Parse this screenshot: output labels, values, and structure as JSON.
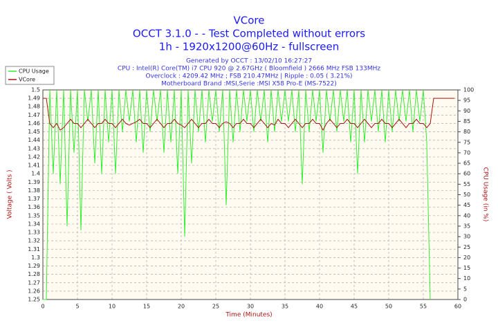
{
  "chart_data": {
    "type": "line",
    "title": "VCore",
    "subtitle": [
      "OCCT 3.1.0 -  - Test Completed without errors",
      "1h - 1920x1200@60Hz - fullscreen"
    ],
    "info": [
      "Generated by OCCT : 13/02/10 16:27:27",
      "CPU : Intel(R) Core(TM) i7 CPU 920 @ 2.67GHz ( Bloomfield ) 2666 MHz FSB 133MHz",
      "Overclock : 4209.42 MHz ; FSB 210.47MHz | Ripple : 0.05 ( 3.21%)",
      "Motherboard Brand :MSI,Serie :MSI X58 Pro-E (MS-7522)"
    ],
    "x_label": "Time (Minutes)",
    "y_label": "Voltage ( Volts )",
    "y2_label": "CPU Usage (in %)",
    "xlim": [
      0,
      60
    ],
    "xticks": [
      0,
      5,
      10,
      15,
      20,
      25,
      30,
      35,
      40,
      45,
      50,
      55,
      60
    ],
    "ylim": [
      1.25,
      1.5
    ],
    "yticks": [
      1.25,
      1.26,
      1.27,
      1.28,
      1.29,
      1.3,
      1.31,
      1.32,
      1.33,
      1.34,
      1.35,
      1.36,
      1.37,
      1.38,
      1.39,
      1.4,
      1.41,
      1.42,
      1.43,
      1.44,
      1.45,
      1.46,
      1.47,
      1.48,
      1.49,
      1.5
    ],
    "y2lim": [
      0,
      100
    ],
    "y2ticks": [
      0,
      5,
      10,
      15,
      20,
      25,
      30,
      35,
      40,
      45,
      50,
      55,
      60,
      65,
      70,
      75,
      80,
      85,
      90,
      95,
      100
    ],
    "grid": true,
    "legend": "top-left",
    "x": [
      0,
      0.5,
      1,
      1.5,
      2,
      2.5,
      3,
      3.5,
      4,
      4.5,
      5,
      5.5,
      6,
      6.5,
      7,
      7.5,
      8,
      8.5,
      9,
      9.5,
      10,
      10.5,
      11,
      11.5,
      12,
      12.5,
      13,
      13.5,
      14,
      14.5,
      15,
      15.5,
      16,
      16.5,
      17,
      17.5,
      18,
      18.5,
      19,
      19.5,
      20,
      20.5,
      21,
      21.5,
      22,
      22.5,
      23,
      23.5,
      24,
      24.5,
      25,
      25.5,
      26,
      26.5,
      27,
      27.5,
      28,
      28.5,
      29,
      29.5,
      30,
      30.5,
      31,
      31.5,
      32,
      32.5,
      33,
      33.5,
      34,
      34.5,
      35,
      35.5,
      36,
      36.5,
      37,
      37.5,
      38,
      38.5,
      39,
      39.5,
      40,
      40.5,
      41,
      41.5,
      42,
      42.5,
      43,
      43.5,
      44,
      44.5,
      45,
      45.5,
      46,
      46.5,
      47,
      47.5,
      48,
      48.5,
      49,
      49.5,
      50,
      50.5,
      51,
      51.5,
      52,
      52.5,
      53,
      53.5,
      54,
      54.5,
      55,
      55.5,
      56,
      56.5,
      57,
      57.5,
      58,
      58.5,
      59,
      59.5
    ],
    "series": [
      {
        "name": "CPU Usage",
        "color": "#33ee33",
        "axis": "y2",
        "values": [
          0,
          0,
          100,
          60,
          100,
          55,
          100,
          35,
          100,
          70,
          100,
          33,
          100,
          85,
          100,
          65,
          100,
          60,
          100,
          75,
          100,
          60,
          100,
          80,
          100,
          85,
          100,
          75,
          100,
          70,
          100,
          80,
          100,
          85,
          100,
          70,
          100,
          75,
          100,
          60,
          100,
          30,
          100,
          65,
          100,
          80,
          100,
          75,
          100,
          85,
          100,
          80,
          100,
          45,
          100,
          75,
          100,
          80,
          100,
          85,
          100,
          80,
          100,
          85,
          100,
          75,
          100,
          80,
          100,
          85,
          100,
          85,
          100,
          80,
          100,
          55,
          100,
          80,
          100,
          85,
          100,
          70,
          100,
          85,
          100,
          80,
          100,
          85,
          100,
          75,
          100,
          60,
          100,
          75,
          100,
          85,
          100,
          80,
          100,
          75,
          100,
          80,
          100,
          85,
          100,
          85,
          100,
          80,
          100,
          85,
          100,
          75,
          0,
          null,
          null,
          null,
          null,
          null,
          null,
          null
        ]
      },
      {
        "name": "VCore",
        "color": "#aa1111",
        "values": [
          1.49,
          1.49,
          1.46,
          1.455,
          1.46,
          1.452,
          1.455,
          1.46,
          1.465,
          1.46,
          1.46,
          1.455,
          1.46,
          1.465,
          1.46,
          1.455,
          1.46,
          1.46,
          1.465,
          1.46,
          1.46,
          1.455,
          1.46,
          1.465,
          1.46,
          1.458,
          1.46,
          1.462,
          1.465,
          1.46,
          1.46,
          1.455,
          1.46,
          1.465,
          1.46,
          1.455,
          1.46,
          1.46,
          1.465,
          1.46,
          1.458,
          1.455,
          1.46,
          1.465,
          1.46,
          1.455,
          1.46,
          1.46,
          1.465,
          1.46,
          1.46,
          1.455,
          1.46,
          1.462,
          1.46,
          1.455,
          1.46,
          1.46,
          1.465,
          1.46,
          1.46,
          1.455,
          1.46,
          1.465,
          1.46,
          1.455,
          1.46,
          1.458,
          1.465,
          1.46,
          1.46,
          1.455,
          1.46,
          1.465,
          1.46,
          1.455,
          1.46,
          1.46,
          1.465,
          1.46,
          1.46,
          1.452,
          1.46,
          1.465,
          1.46,
          1.455,
          1.46,
          1.46,
          1.465,
          1.46,
          1.46,
          1.455,
          1.46,
          1.465,
          1.46,
          1.455,
          1.46,
          1.46,
          1.465,
          1.46,
          1.46,
          1.455,
          1.46,
          1.465,
          1.46,
          1.455,
          1.46,
          1.46,
          1.465,
          1.46,
          1.46,
          1.455,
          1.46,
          1.49,
          1.49,
          1.49,
          1.49,
          1.49,
          1.49,
          1.49
        ]
      }
    ]
  }
}
